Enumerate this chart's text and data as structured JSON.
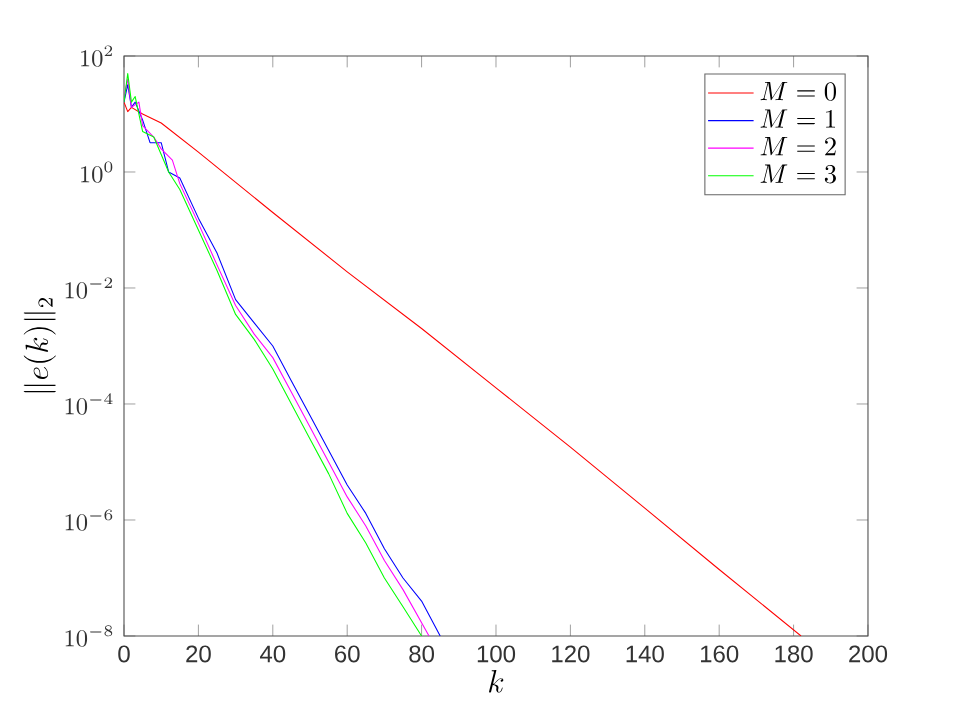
{
  "chart_data": {
    "type": "line",
    "xlabel": "k",
    "ylabel": "\\|e(k)\\|_2",
    "log": "y",
    "xlim": [
      0,
      200
    ],
    "ylim": [
      1e-08,
      100
    ],
    "xticks": [
      0,
      20,
      40,
      60,
      80,
      100,
      120,
      140,
      160,
      180,
      200
    ],
    "yticks": [
      {
        "value": 1e-08,
        "label": "10^{-8}"
      },
      {
        "value": 1e-06,
        "label": "10^{-6}"
      },
      {
        "value": 0.0001,
        "label": "10^{-4}"
      },
      {
        "value": 0.01,
        "label": "10^{-2}"
      },
      {
        "value": 1,
        "label": "10^{0}"
      },
      {
        "value": 100,
        "label": "10^{2}"
      }
    ],
    "legend": "top right",
    "marker": "none",
    "line_style": "solid",
    "grid": false,
    "series": [
      {
        "name": "M=0",
        "color": "#ff0000",
        "x": [
          0,
          1,
          2,
          5,
          10,
          20,
          40,
          60,
          80,
          100,
          120,
          140,
          160,
          182
        ],
        "values": [
          16,
          11,
          13,
          10,
          7,
          2.2,
          0.2,
          0.019,
          0.002,
          0.00019,
          1.8e-05,
          1.6e-06,
          1.4e-07,
          1e-08
        ]
      },
      {
        "name": "M=1",
        "color": "#0000ff",
        "x": [
          0,
          1,
          2,
          3,
          5,
          7,
          10,
          12,
          15,
          20,
          25,
          30,
          35,
          40,
          45,
          50,
          55,
          60,
          65,
          70,
          75,
          80,
          85
        ],
        "values": [
          16,
          32,
          13,
          16,
          7.9,
          3.2,
          3.2,
          1,
          0.79,
          0.16,
          0.04,
          0.0063,
          0.0025,
          0.001,
          0.00025,
          6.3e-05,
          1.6e-05,
          4e-06,
          1.3e-06,
          3.2e-07,
          1e-07,
          4e-08,
          1e-08
        ]
      },
      {
        "name": "M=2",
        "color": "#ff00ff",
        "x": [
          0,
          1,
          2,
          4,
          5,
          8,
          10,
          13,
          15,
          20,
          25,
          30,
          35,
          40,
          45,
          50,
          55,
          60,
          65,
          70,
          75,
          82
        ],
        "values": [
          20,
          40,
          13,
          16,
          6.3,
          4,
          2.5,
          1.6,
          0.63,
          0.13,
          0.025,
          0.005,
          0.0016,
          0.00063,
          0.00016,
          4e-05,
          1e-05,
          2.5e-06,
          7.9e-07,
          2e-07,
          6.3e-08,
          1e-08
        ]
      },
      {
        "name": "M=3",
        "color": "#00ff00",
        "x": [
          0,
          1,
          2,
          3,
          5,
          8,
          10,
          12,
          15,
          20,
          25,
          30,
          35,
          40,
          45,
          50,
          55,
          60,
          65,
          70,
          75,
          80
        ],
        "values": [
          16,
          50,
          16,
          20,
          5,
          4,
          2,
          1,
          0.5,
          0.1,
          0.02,
          0.0035,
          0.0013,
          0.0004,
          0.0001,
          2.5e-05,
          6.3e-06,
          1.3e-06,
          4e-07,
          1e-07,
          3.2e-08,
          1e-08
        ]
      }
    ]
  }
}
